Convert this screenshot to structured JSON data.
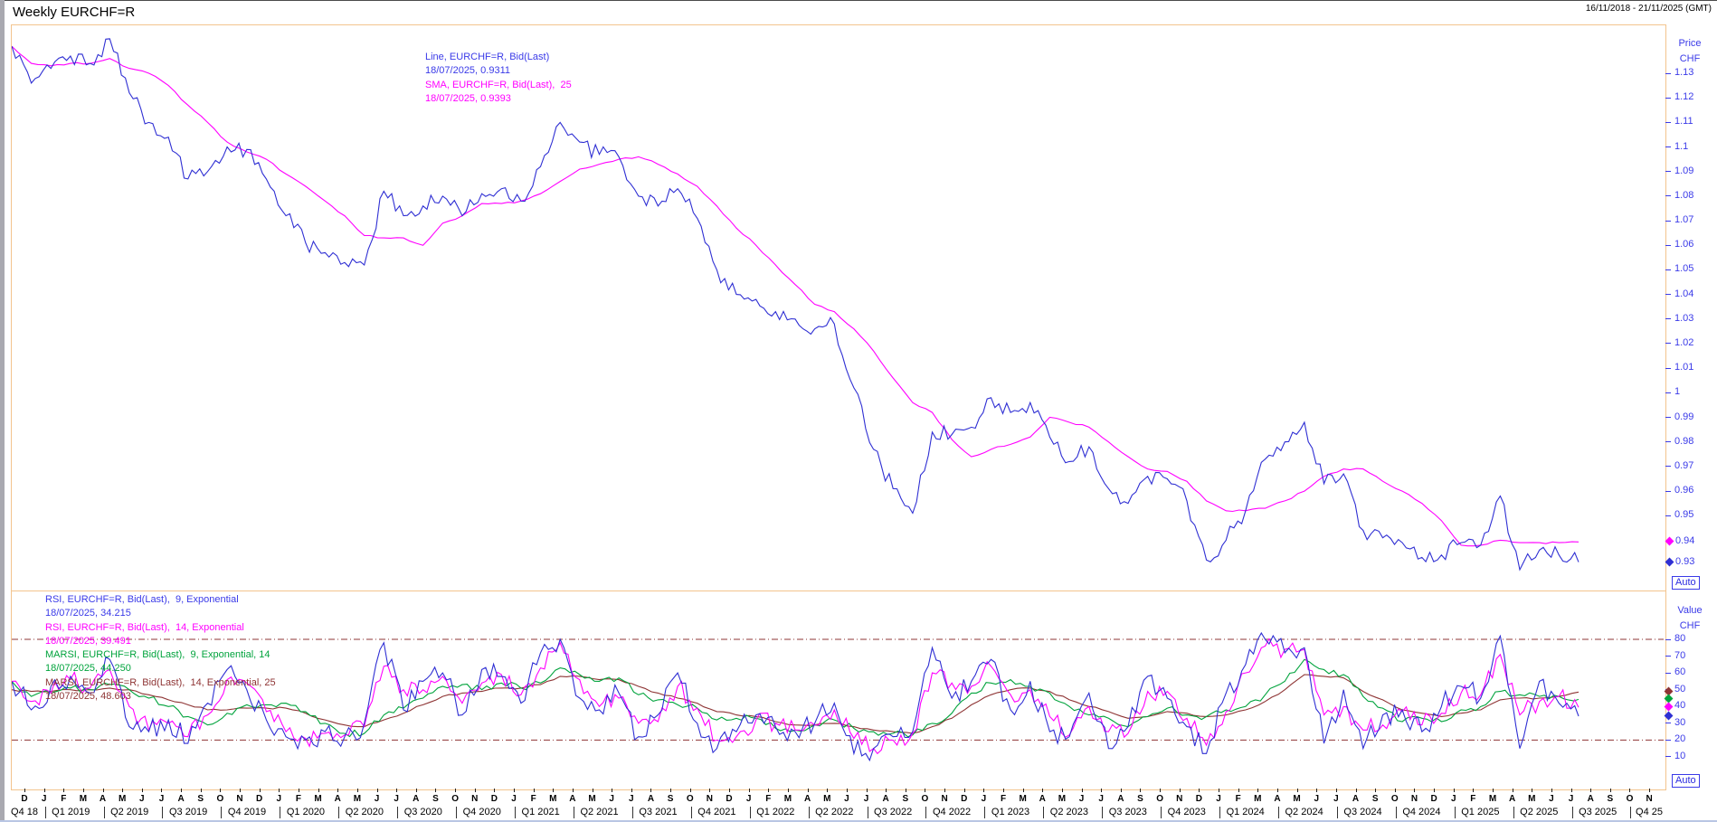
{
  "header": {
    "title": "Weekly EURCHF=R",
    "range": "16/11/2018 - 21/11/2025 (GMT)"
  },
  "misc": {
    "auto_label": "Auto"
  },
  "axis": {
    "price_title_1": "Price",
    "price_title_2": "CHF",
    "value_title_1": "Value",
    "value_title_2": "CHF"
  },
  "colors": {
    "blue": "#2f2fd3",
    "blue_text": "#3a3ae8",
    "magenta": "#ff00ff",
    "green": "#00a33c",
    "maroon": "#8e3434",
    "panel_border": "#f3c48e"
  },
  "chart_data": {
    "type": "line",
    "title": "Weekly EURCHF=R",
    "time_range": "16/11/2018 - 21/11/2025 (GMT)",
    "x_start": "2018-11",
    "x_data_end": "2025-07-18",
    "x_axis_end": "2025-11-21",
    "months": [
      "D",
      "J",
      "F",
      "M",
      "A",
      "M",
      "J",
      "J",
      "A",
      "S",
      "O",
      "N",
      "D",
      "J",
      "F",
      "M",
      "A",
      "M",
      "J",
      "J",
      "A",
      "S",
      "O",
      "N",
      "D",
      "J",
      "F",
      "M",
      "A",
      "M",
      "J",
      "J",
      "A",
      "S",
      "O",
      "N",
      "D",
      "J",
      "F",
      "M",
      "A",
      "M",
      "J",
      "J",
      "A",
      "S",
      "O",
      "N",
      "D",
      "J",
      "F",
      "M",
      "A",
      "M",
      "J",
      "J",
      "A",
      "S",
      "O",
      "N",
      "D",
      "J",
      "F",
      "M",
      "A",
      "M",
      "J",
      "J",
      "A",
      "S",
      "O",
      "N",
      "D",
      "J",
      "F",
      "M",
      "A",
      "M",
      "J",
      "J",
      "A",
      "S",
      "O",
      "N"
    ],
    "quarters": [
      "Q4 18",
      "Q1 2019",
      "Q2 2019",
      "Q3 2019",
      "Q4 2019",
      "Q1 2020",
      "Q2 2020",
      "Q3 2020",
      "Q4 2020",
      "Q1 2021",
      "Q2 2021",
      "Q3 2021",
      "Q4 2021",
      "Q1 2022",
      "Q2 2022",
      "Q3 2022",
      "Q4 2022",
      "Q1 2023",
      "Q2 2023",
      "Q3 2023",
      "Q4 2023",
      "Q1 2024",
      "Q2 2024",
      "Q3 2024",
      "Q4 2024",
      "Q1 2025",
      "Q2 2025",
      "Q3 2025",
      "Q4 25"
    ],
    "price_panel": {
      "ylabel": "Price CHF",
      "ticks": [
        {
          "v": 1.13,
          "t": "1.13"
        },
        {
          "v": 1.12,
          "t": "1.12"
        },
        {
          "v": 1.11,
          "t": "1.11"
        },
        {
          "v": 1.1,
          "t": "1.1"
        },
        {
          "v": 1.09,
          "t": "1.09"
        },
        {
          "v": 1.08,
          "t": "1.08"
        },
        {
          "v": 1.07,
          "t": "1.07"
        },
        {
          "v": 1.06,
          "t": "1.06"
        },
        {
          "v": 1.05,
          "t": "1.05"
        },
        {
          "v": 1.04,
          "t": "1.04"
        },
        {
          "v": 1.03,
          "t": "1.03"
        },
        {
          "v": 1.02,
          "t": "1.02"
        },
        {
          "v": 1.01,
          "t": "1.01"
        },
        {
          "v": 1.0,
          "t": "1"
        },
        {
          "v": 0.99,
          "t": "0.99"
        },
        {
          "v": 0.98,
          "t": "0.98"
        },
        {
          "v": 0.97,
          "t": "0.97"
        },
        {
          "v": 0.96,
          "t": "0.96"
        },
        {
          "v": 0.95,
          "t": "0.95"
        }
      ],
      "legend": [
        {
          "text": "Line, EURCHF=R, Bid(Last)",
          "color": "#3a3ae8"
        },
        {
          "text": "18/07/2025, 0.9311",
          "color": "#3a3ae8"
        },
        {
          "text": "SMA, EURCHF=R, Bid(Last),  25",
          "color": "#ff00ff"
        },
        {
          "text": "18/07/2025, 0.9393",
          "color": "#ff00ff"
        }
      ],
      "markers": [
        {
          "value": 0.9393,
          "label": "0.94",
          "color": "#ff00ff"
        },
        {
          "value": 0.9311,
          "label": "0.93",
          "color": "#2f2fd3"
        }
      ],
      "series": [
        {
          "name": "Line, EURCHF=R, Bid(Last)",
          "color": "#2f2fd3",
          "last_date": "18/07/2025",
          "last_value": 0.9311,
          "values": [
            1.141,
            1.126,
            1.132,
            1.137,
            1.134,
            1.144,
            1.122,
            1.11,
            1.104,
            1.087,
            1.09,
            1.1,
            1.099,
            1.087,
            1.072,
            1.061,
            1.057,
            1.053,
            1.052,
            1.082,
            1.072,
            1.076,
            1.08,
            1.072,
            1.081,
            1.083,
            1.078,
            1.092,
            1.11,
            1.102,
            1.097,
            1.096,
            1.08,
            1.076,
            1.083,
            1.071,
            1.05,
            1.04,
            1.038,
            1.033,
            1.03,
            1.026,
            1.028,
            1.002,
            0.977,
            0.961,
            0.951,
            0.984,
            0.983,
            0.986,
            0.998,
            0.992,
            0.996,
            0.982,
            0.972,
            0.978,
            0.961,
            0.955,
            0.966,
            0.965,
            0.956,
            0.932,
            0.94,
            0.952,
            0.973,
            0.98,
            0.988,
            0.963,
            0.967,
            0.944,
            0.941,
            0.939,
            0.933,
            0.934,
            0.939,
            0.938,
            0.958,
            0.928,
            0.936,
            0.934,
            0.9311
          ]
        },
        {
          "name": "SMA, EURCHF=R, Bid(Last), 25",
          "color": "#ff00ff",
          "last_date": "18/07/2025",
          "last_value": 0.9393,
          "values": [
            1.141,
            1.134,
            1.133,
            1.134,
            1.134,
            1.136,
            1.132,
            1.13,
            1.125,
            1.117,
            1.11,
            1.102,
            1.098,
            1.095,
            1.089,
            1.084,
            1.078,
            1.072,
            1.064,
            1.063,
            1.063,
            1.06,
            1.069,
            1.072,
            1.077,
            1.077,
            1.078,
            1.081,
            1.086,
            1.091,
            1.093,
            1.095,
            1.096,
            1.093,
            1.089,
            1.084,
            1.076,
            1.067,
            1.06,
            1.052,
            1.044,
            1.036,
            1.033,
            1.026,
            1.017,
            1.006,
            0.996,
            0.992,
            0.981,
            0.974,
            0.977,
            0.979,
            0.982,
            0.99,
            0.988,
            0.986,
            0.98,
            0.974,
            0.969,
            0.968,
            0.964,
            0.956,
            0.952,
            0.952,
            0.953,
            0.956,
            0.96,
            0.966,
            0.969,
            0.969,
            0.964,
            0.96,
            0.955,
            0.948,
            0.938,
            0.938,
            0.94,
            0.939,
            0.939,
            0.939,
            0.9393
          ]
        }
      ]
    },
    "rsi_panel": {
      "ylabel": "Value CHF",
      "ticks": [
        {
          "v": 80,
          "t": "80"
        },
        {
          "v": 70,
          "t": "70"
        },
        {
          "v": 60,
          "t": "60"
        },
        {
          "v": 50,
          "t": "50"
        },
        {
          "v": 40,
          "t": "40"
        },
        {
          "v": 30,
          "t": "30"
        },
        {
          "v": 20,
          "t": "20"
        },
        {
          "v": 10,
          "t": "10"
        }
      ],
      "guides": [
        80,
        20
      ],
      "legend": [
        {
          "text": "RSI, EURCHF=R, Bid(Last),  9, Exponential",
          "color": "#3a3ae8"
        },
        {
          "text": "18/07/2025, 34.215",
          "color": "#3a3ae8"
        },
        {
          "text": "RSI, EURCHF=R, Bid(Last),  14, Exponential",
          "color": "#ff00ff"
        },
        {
          "text": "18/07/2025, 39.491",
          "color": "#ff00ff"
        },
        {
          "text": "MARSI, EURCHF=R, Bid(Last),  9, Exponential, 14",
          "color": "#00a33c"
        },
        {
          "text": "18/07/2025, 44.250",
          "color": "#00a33c"
        },
        {
          "text": "MARSI, EURCHF=R, Bid(Last),  14, Exponential, 25",
          "color": "#8e3434"
        },
        {
          "text": "18/07/2025, 48.603",
          "color": "#8e3434"
        }
      ],
      "markers": [
        {
          "value": 48.603,
          "color": "#8e3434"
        },
        {
          "value": 44.25,
          "color": "#00a33c"
        },
        {
          "value": 39.491,
          "color": "#ff00ff"
        },
        {
          "value": 34.215,
          "color": "#2f2fd3"
        }
      ],
      "series": [
        {
          "name": "RSI, EURCHF=R, Bid(Last), 9, Exponential",
          "color": "#2f2fd3",
          "last_value": 34.215,
          "values": [
            55,
            38,
            52,
            58,
            48,
            68,
            28,
            25,
            32,
            18,
            42,
            62,
            50,
            32,
            22,
            20,
            25,
            22,
            30,
            78,
            38,
            55,
            60,
            35,
            62,
            58,
            42,
            72,
            80,
            45,
            38,
            48,
            22,
            35,
            60,
            30,
            15,
            25,
            35,
            28,
            25,
            30,
            42,
            12,
            15,
            22,
            25,
            75,
            45,
            55,
            68,
            38,
            55,
            25,
            22,
            48,
            15,
            28,
            58,
            45,
            28,
            12,
            48,
            65,
            80,
            72,
            75,
            18,
            50,
            15,
            35,
            38,
            25,
            40,
            52,
            45,
            82,
            15,
            55,
            42,
            34.215
          ]
        },
        {
          "name": "RSI, EURCHF=R, Bid(Last), 14, Exponential",
          "color": "#ff00ff",
          "last_value": 39.491,
          "values": [
            55,
            43,
            48,
            56,
            51,
            62,
            40,
            26,
            30,
            22,
            35,
            56,
            54,
            37,
            25,
            21,
            24,
            23,
            28,
            64,
            50,
            50,
            58,
            42,
            54,
            59,
            47,
            63,
            78,
            56,
            40,
            45,
            30,
            31,
            52,
            39,
            20,
            22,
            32,
            30,
            26,
            29,
            38,
            21,
            15,
            20,
            24,
            60,
            54,
            52,
            64,
            47,
            50,
            34,
            23,
            40,
            25,
            24,
            49,
            49,
            33,
            17,
            37,
            60,
            76,
            74,
            74,
            35,
            40,
            26,
            29,
            37,
            29,
            36,
            48,
            47,
            71,
            35,
            43,
            46,
            39.491
          ]
        },
        {
          "name": "MARSI, EURCHF=R, Bid(Last), 9, Exponential, 14",
          "color": "#00a33c",
          "last_value": 44.25,
          "values": [
            55,
            46,
            48,
            51,
            50,
            53,
            50,
            45,
            40,
            34,
            29,
            36,
            41,
            41,
            42,
            37,
            30,
            24,
            24,
            35,
            39,
            45,
            52,
            53,
            50,
            54,
            51,
            54,
            63,
            59,
            55,
            57,
            47,
            44,
            41,
            39,
            32,
            33,
            33,
            27,
            26,
            29,
            32,
            27,
            25,
            24,
            23,
            30,
            36,
            48,
            54,
            56,
            52,
            48,
            40,
            35,
            33,
            28,
            34,
            39,
            35,
            34,
            38,
            40,
            47,
            55,
            68,
            62,
            59,
            46,
            39,
            31,
            33,
            31,
            38,
            40,
            49,
            47,
            46,
            46,
            44.25
          ]
        },
        {
          "name": "MARSI, EURCHF=R, Bid(Last), 14, Exponential, 25",
          "color": "#8e3434",
          "last_value": 48.603,
          "values": [
            50,
            49,
            49,
            50,
            50,
            51,
            50,
            47,
            44,
            41,
            38,
            38,
            39,
            39,
            39,
            36,
            32,
            29,
            28,
            32,
            36,
            41,
            46,
            48,
            49,
            51,
            51,
            53,
            58,
            58,
            56,
            56,
            52,
            48,
            45,
            42,
            37,
            35,
            34,
            31,
            29,
            29,
            30,
            28,
            26,
            25,
            24,
            28,
            33,
            41,
            47,
            50,
            51,
            49,
            44,
            40,
            37,
            33,
            34,
            37,
            36,
            34,
            35,
            38,
            43,
            50,
            59,
            58,
            57,
            49,
            44,
            38,
            36,
            34,
            36,
            38,
            44,
            45,
            45,
            46,
            48.603
          ]
        }
      ]
    }
  }
}
